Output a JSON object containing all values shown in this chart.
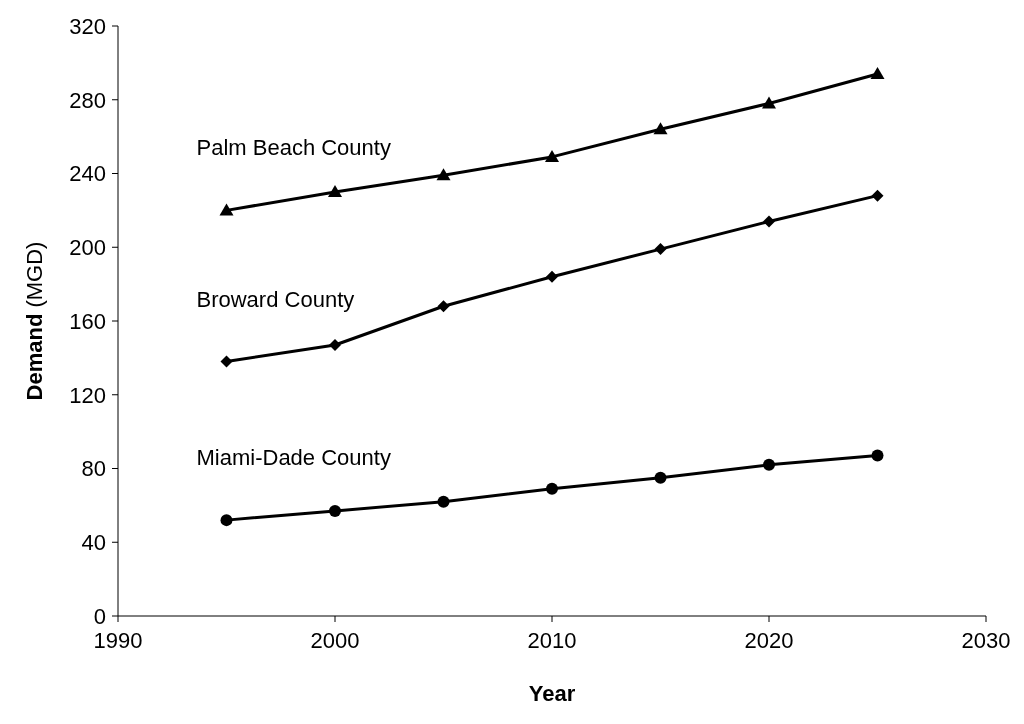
{
  "chart_data": {
    "type": "line",
    "xlabel": "Year",
    "ylabel": "Demand (MGD)",
    "x": [
      1995,
      2000,
      2005,
      2010,
      2015,
      2020,
      2025
    ],
    "series": [
      {
        "name": "Palm Beach County",
        "color": "#000000",
        "marker": "triangle",
        "values": [
          220,
          230,
          239,
          249,
          264,
          278,
          294
        ]
      },
      {
        "name": "Broward County",
        "color": "#000000",
        "marker": "diamond",
        "values": [
          138,
          147,
          168,
          184,
          199,
          214,
          228
        ]
      },
      {
        "name": "Miami-Dade County",
        "color": "#000000",
        "marker": "circle",
        "values": [
          52,
          57,
          62,
          69,
          75,
          82,
          87
        ]
      }
    ],
    "xlim": [
      1990,
      2030
    ],
    "xticks": [
      1990,
      2000,
      2010,
      2020,
      2030
    ],
    "ylim": [
      0,
      320
    ],
    "yticks": [
      0,
      40,
      80,
      120,
      160,
      200,
      240,
      280,
      320
    ],
    "grid": false,
    "legend": false,
    "line_style": "solid"
  }
}
